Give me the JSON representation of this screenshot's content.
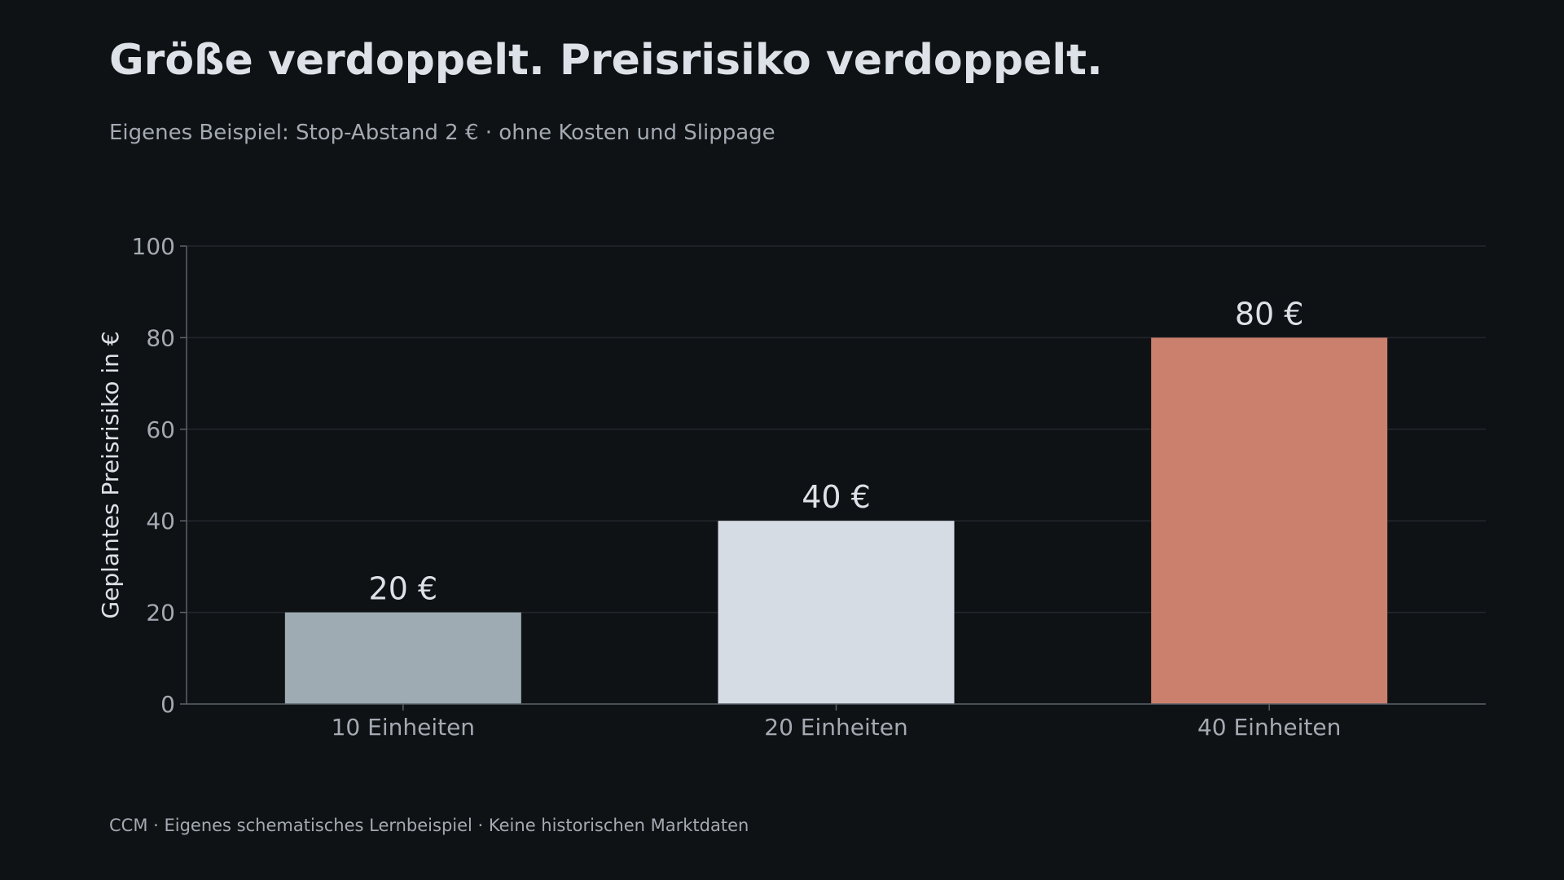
{
  "header": {
    "title": "Größe verdoppelt. Preisrisiko verdoppelt.",
    "subtitle": "Eigenes Beispiel: Stop-Abstand 2 € · ohne Kosten und Slippage"
  },
  "footer": {
    "text": "CCM · Eigenes schematisches Lernbeispiel · Keine historischen Marktdaten"
  },
  "chart_data": {
    "type": "bar",
    "categories": [
      "10 Einheiten",
      "20 Einheiten",
      "40 Einheiten"
    ],
    "values": [
      20,
      40,
      80
    ],
    "data_labels": [
      "20 €",
      "40 €",
      "80 €"
    ],
    "bar_colors": [
      "#9eabb3",
      "#d5dce3",
      "#cb7f6d"
    ],
    "ylabel": "Geplantes Preisrisiko in €",
    "xlabel": "",
    "ylim": [
      0,
      100
    ],
    "yticks": [
      0,
      20,
      40,
      60,
      80,
      100
    ],
    "grid": true,
    "colors": {
      "background": "#0f1215",
      "grid": "#23272c",
      "axis": "#5a626b",
      "text": "#dde2e8",
      "muted_text": "#a3aab2"
    }
  }
}
